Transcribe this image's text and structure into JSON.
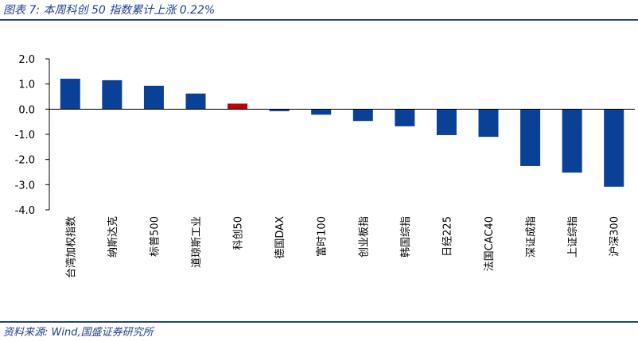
{
  "figure": {
    "title": "图表 7:  本周科创 50 指数累计上涨 0.22%",
    "source": "资料来源:  Wind,国盛证券研究所"
  },
  "colors": {
    "primary_bar": "#0a4096",
    "highlight_bar": "#c00000",
    "accent": "#1f3f8f"
  },
  "chart_data": {
    "type": "bar",
    "categories": [
      "台湾加权指数",
      "纳斯达克",
      "标普500",
      "道琼斯工业",
      "科创50",
      "德国DAX",
      "富时100",
      "创业板指",
      "韩国综指",
      "日经225",
      "法国CAC40",
      "深证成指",
      "上证综指",
      "沪深300"
    ],
    "values": [
      1.21,
      1.15,
      0.93,
      0.62,
      0.22,
      -0.08,
      -0.22,
      -0.47,
      -0.68,
      -1.03,
      -1.1,
      -2.26,
      -2.52,
      -3.08
    ],
    "highlight_index": 4,
    "ylim": [
      -4.0,
      2.0
    ],
    "yticks": [
      "2.0",
      "1.0",
      "0.0",
      "-1.0",
      "-2.0",
      "-3.0",
      "-4.0"
    ],
    "ytick_values": [
      2.0,
      1.0,
      0.0,
      -1.0,
      -2.0,
      -3.0,
      -4.0
    ],
    "xlabel": "",
    "ylabel": "",
    "grid": false,
    "legend": "none"
  }
}
